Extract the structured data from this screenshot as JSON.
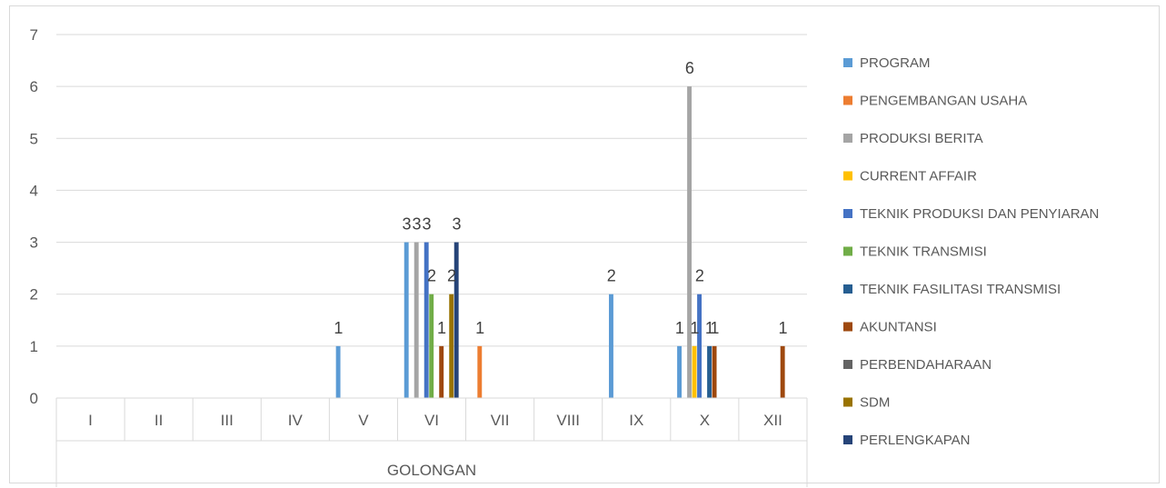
{
  "chart_data": {
    "type": "bar",
    "title": "",
    "xlabel": "GOLONGAN",
    "ylabel": "",
    "ylim": [
      0,
      7
    ],
    "yticks": [
      0,
      1,
      2,
      3,
      4,
      5,
      6,
      7
    ],
    "grid": true,
    "legend_position": "right",
    "categories": [
      "I",
      "II",
      "III",
      "IV",
      "V",
      "VI",
      "VII",
      "VIII",
      "IX",
      "X",
      "XII"
    ],
    "series": [
      {
        "name": "PROGRAM",
        "color": "#5b9bd5",
        "values": [
          0,
          0,
          0,
          0,
          1,
          3,
          0,
          0,
          2,
          1,
          0
        ]
      },
      {
        "name": "PENGEMBANGAN USAHA",
        "color": "#ed7d31",
        "values": [
          0,
          0,
          0,
          0,
          0,
          0,
          1,
          0,
          0,
          0,
          0
        ]
      },
      {
        "name": "PRODUKSI BERITA",
        "color": "#a5a5a5",
        "values": [
          0,
          0,
          0,
          0,
          0,
          3,
          0,
          0,
          0,
          6,
          0
        ]
      },
      {
        "name": "CURRENT AFFAIR",
        "color": "#ffc000",
        "values": [
          0,
          0,
          0,
          0,
          0,
          0,
          0,
          0,
          0,
          1,
          0
        ]
      },
      {
        "name": "TEKNIK PRODUKSI DAN PENYIARAN",
        "color": "#4472c4",
        "values": [
          0,
          0,
          0,
          0,
          0,
          3,
          0,
          0,
          0,
          2,
          0
        ]
      },
      {
        "name": "TEKNIK TRANSMISI",
        "color": "#70ad47",
        "values": [
          0,
          0,
          0,
          0,
          0,
          2,
          0,
          0,
          0,
          0,
          0
        ]
      },
      {
        "name": "TEKNIK FASILITASI TRANSMISI",
        "color": "#255e91",
        "values": [
          0,
          0,
          0,
          0,
          0,
          0,
          0,
          0,
          0,
          1,
          0
        ]
      },
      {
        "name": "AKUNTANSI",
        "color": "#9e480e",
        "values": [
          0,
          0,
          0,
          0,
          0,
          1,
          0,
          0,
          0,
          1,
          1
        ]
      },
      {
        "name": "PERBENDAHARAAN",
        "color": "#636363",
        "values": [
          0,
          0,
          0,
          0,
          0,
          0,
          0,
          0,
          0,
          0,
          0
        ]
      },
      {
        "name": "SDM",
        "color": "#997300",
        "values": [
          0,
          0,
          0,
          0,
          0,
          2,
          0,
          0,
          0,
          0,
          0
        ]
      },
      {
        "name": "PERLENGKAPAN",
        "color": "#264478",
        "values": [
          0,
          0,
          0,
          0,
          0,
          3,
          0,
          0,
          0,
          0,
          0
        ]
      }
    ]
  }
}
